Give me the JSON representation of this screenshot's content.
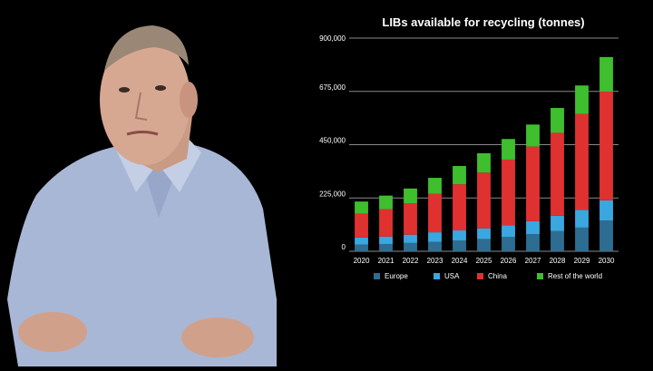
{
  "video": {
    "presenter_description": "Presenter in light blue collared shirt speaking to camera"
  },
  "chart_data": {
    "type": "bar",
    "stacked": true,
    "title": "LIBs available for recycling (tonnes)",
    "categories": [
      "2020",
      "2021",
      "2022",
      "2023",
      "2024",
      "2025",
      "2026",
      "2027",
      "2028",
      "2029",
      "2030"
    ],
    "series": [
      {
        "name": "Europe",
        "color": "#2e6d92",
        "values": [
          28000,
          30000,
          35000,
          40000,
          45000,
          52000,
          60000,
          72000,
          85000,
          100000,
          130000
        ]
      },
      {
        "name": "USA",
        "color": "#3aa7e0",
        "values": [
          30000,
          32000,
          35000,
          40000,
          43000,
          45000,
          50000,
          55000,
          65000,
          75000,
          85000
        ]
      },
      {
        "name": "China",
        "color": "#e03131",
        "values": [
          100000,
          116000,
          133000,
          163000,
          195000,
          235000,
          277000,
          315000,
          350000,
          405000,
          460000
        ]
      },
      {
        "name": "Rest of the world",
        "color": "#3fbe2e",
        "values": [
          52000,
          57000,
          62000,
          67000,
          77000,
          82000,
          87000,
          93000,
          105000,
          120000,
          145000
        ]
      }
    ],
    "ylim": [
      0,
      900000
    ],
    "yticks": [
      0,
      225000,
      450000,
      675000,
      900000
    ],
    "ytick_labels": [
      "0",
      "225,000",
      "450,000",
      "675,000",
      "900,000"
    ],
    "xlabel": "",
    "ylabel": "",
    "grid": true,
    "legend_position": "bottom"
  }
}
